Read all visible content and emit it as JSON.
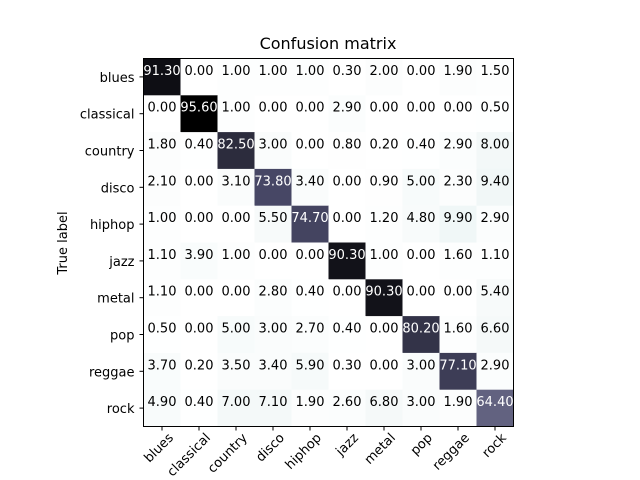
{
  "chart_data": {
    "type": "heatmap",
    "title": "Confusion matrix",
    "ylabel": "True label",
    "xlabel": "",
    "x_categories": [
      "blues",
      "classical",
      "country",
      "disco",
      "hiphop",
      "jazz",
      "metal",
      "pop",
      "reggae",
      "rock"
    ],
    "y_categories": [
      "blues",
      "classical",
      "country",
      "disco",
      "hiphop",
      "jazz",
      "metal",
      "pop",
      "reggae",
      "rock"
    ],
    "values": [
      [
        91.3,
        0.0,
        1.0,
        1.0,
        1.0,
        0.3,
        2.0,
        0.0,
        1.9,
        1.5
      ],
      [
        0.0,
        95.6,
        1.0,
        0.0,
        0.0,
        2.9,
        0.0,
        0.0,
        0.0,
        0.5
      ],
      [
        1.8,
        0.4,
        82.5,
        3.0,
        0.0,
        0.8,
        0.2,
        0.4,
        2.9,
        8.0
      ],
      [
        2.1,
        0.0,
        3.1,
        73.8,
        3.4,
        0.0,
        0.9,
        5.0,
        2.3,
        9.4
      ],
      [
        1.0,
        0.0,
        0.0,
        5.5,
        74.7,
        0.0,
        1.2,
        4.8,
        9.9,
        2.9
      ],
      [
        1.1,
        3.9,
        1.0,
        0.0,
        0.0,
        90.3,
        1.0,
        0.0,
        1.6,
        1.1
      ],
      [
        1.1,
        0.0,
        0.0,
        2.8,
        0.4,
        0.0,
        90.3,
        0.0,
        0.0,
        5.4
      ],
      [
        0.5,
        0.0,
        5.0,
        3.0,
        2.7,
        0.4,
        0.0,
        80.2,
        1.6,
        6.6
      ],
      [
        3.7,
        0.2,
        3.5,
        3.4,
        5.9,
        0.3,
        0.0,
        3.0,
        77.1,
        2.9
      ],
      [
        4.9,
        0.4,
        7.0,
        7.1,
        1.9,
        2.6,
        6.8,
        3.0,
        1.9,
        64.4
      ]
    ],
    "value_format_decimals": 2,
    "colormap": "bone_r",
    "color_range": [
      0,
      95.6
    ],
    "text_threshold": 47.8,
    "text_color_light": "#ffffff",
    "text_color_dark": "#000000",
    "x_tick_rotation_deg": 45,
    "grid": false
  }
}
